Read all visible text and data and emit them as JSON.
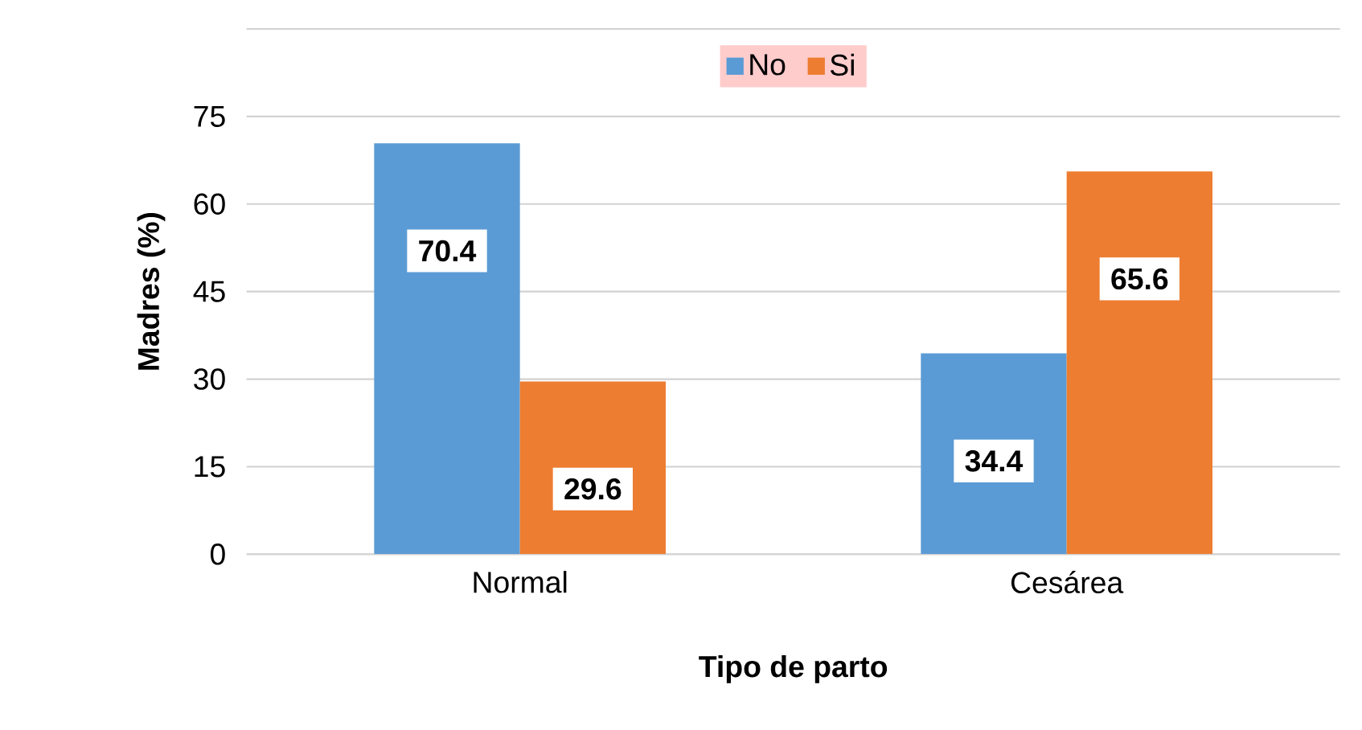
{
  "chart_data": {
    "type": "bar",
    "xlabel": "Tipo de parto",
    "ylabel": "Madres (%)",
    "categories": [
      "Normal",
      "Cesárea"
    ],
    "series": [
      {
        "name": "No",
        "color": "#5b9bd5",
        "values": [
          70.4,
          34.4
        ]
      },
      {
        "name": "Si",
        "color": "#ed7d31",
        "values": [
          29.6,
          65.6
        ]
      }
    ],
    "ylim": [
      0,
      90
    ],
    "yticks": [
      0,
      15,
      30,
      45,
      60,
      75,
      {
        "value": 90,
        "label": null
      }
    ],
    "grid": "y",
    "legend": "top",
    "data_labels": true
  }
}
